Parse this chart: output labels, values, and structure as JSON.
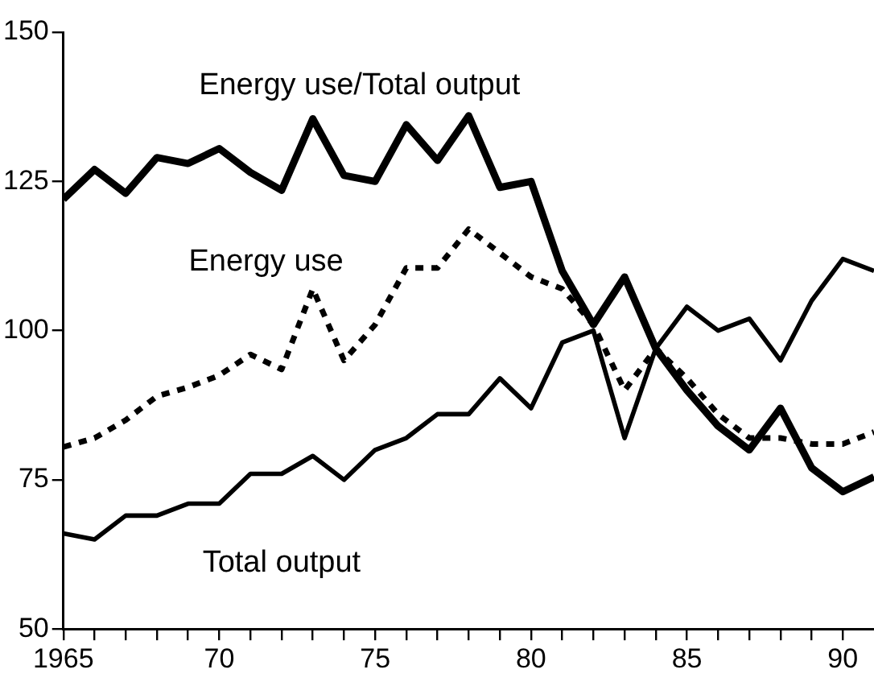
{
  "chart_data": {
    "type": "line",
    "x": [
      1965,
      1966,
      1967,
      1968,
      1969,
      1970,
      1971,
      1972,
      1973,
      1974,
      1975,
      1976,
      1977,
      1978,
      1979,
      1980,
      1981,
      1982,
      1983,
      1984,
      1985,
      1986,
      1987,
      1988,
      1989,
      1990,
      1991
    ],
    "series": [
      {
        "name": "Energy use/Total output",
        "color": "#000000",
        "line_style": "solid",
        "values": [
          122,
          127,
          123,
          129,
          128,
          130.5,
          126.5,
          123.5,
          135.5,
          126,
          125,
          134.5,
          128.5,
          136,
          124,
          125,
          110,
          101,
          109,
          97,
          90,
          84,
          80,
          87,
          77,
          73,
          75.5
        ]
      },
      {
        "name": "Energy use",
        "color": "#000000",
        "line_style": "dotted",
        "values": [
          80.5,
          82,
          85,
          89,
          90.5,
          92.5,
          96,
          93.5,
          107,
          95,
          101,
          110.5,
          110.5,
          117,
          113,
          109,
          107,
          101,
          90,
          97,
          92,
          86,
          82,
          82,
          81,
          81,
          83
        ]
      },
      {
        "name": "Total output",
        "color": "#000000",
        "line_style": "solid",
        "values": [
          66,
          65,
          69,
          69,
          71,
          71,
          76,
          76,
          79,
          75,
          80,
          82,
          86,
          86,
          92,
          87,
          98,
          100,
          82,
          97,
          104,
          100,
          102,
          95,
          105,
          112,
          110
        ]
      }
    ],
    "xlim": [
      1965,
      1991
    ],
    "xticks": [
      {
        "value": 1965,
        "label": "1965"
      },
      {
        "value": 1966,
        "label": null
      },
      {
        "value": 1967,
        "label": null
      },
      {
        "value": 1968,
        "label": null
      },
      {
        "value": 1969,
        "label": null
      },
      {
        "value": 1970,
        "label": "70"
      },
      {
        "value": 1971,
        "label": null
      },
      {
        "value": 1972,
        "label": null
      },
      {
        "value": 1973,
        "label": null
      },
      {
        "value": 1974,
        "label": null
      },
      {
        "value": 1975,
        "label": "75"
      },
      {
        "value": 1976,
        "label": null
      },
      {
        "value": 1977,
        "label": null
      },
      {
        "value": 1978,
        "label": null
      },
      {
        "value": 1979,
        "label": null
      },
      {
        "value": 1980,
        "label": "80"
      },
      {
        "value": 1981,
        "label": null
      },
      {
        "value": 1982,
        "label": null
      },
      {
        "value": 1983,
        "label": null
      },
      {
        "value": 1984,
        "label": null
      },
      {
        "value": 1985,
        "label": "85"
      },
      {
        "value": 1986,
        "label": null
      },
      {
        "value": 1987,
        "label": null
      },
      {
        "value": 1988,
        "label": null
      },
      {
        "value": 1989,
        "label": null
      },
      {
        "value": 1990,
        "label": "90"
      }
    ],
    "ylim": [
      50,
      150
    ],
    "yticks": [
      50,
      75,
      100,
      125,
      150
    ],
    "grid": false,
    "legend": false,
    "marker": "none"
  }
}
